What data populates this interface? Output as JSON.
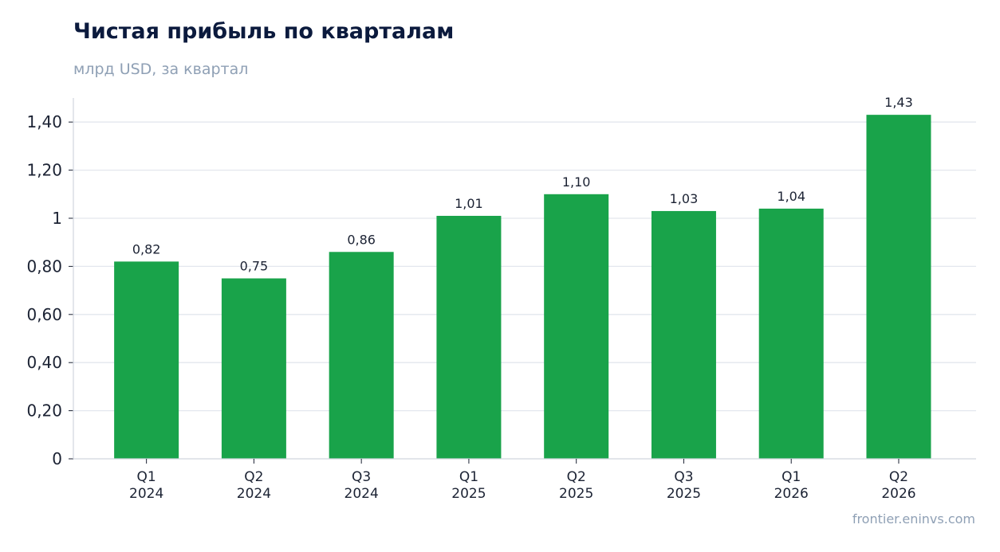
{
  "chart_data": {
    "type": "bar",
    "title": "Чистая прибыль по кварталам",
    "subtitle": "млрд USD, за квартал",
    "categories": [
      [
        "Q1",
        "2024"
      ],
      [
        "Q2",
        "2024"
      ],
      [
        "Q3",
        "2024"
      ],
      [
        "Q1",
        "2025"
      ],
      [
        "Q2",
        "2025"
      ],
      [
        "Q3",
        "2025"
      ],
      [
        "Q1",
        "2026"
      ],
      [
        "Q2",
        "2026"
      ]
    ],
    "values": [
      0.82,
      0.75,
      0.86,
      1.01,
      1.1,
      1.03,
      1.04,
      1.43
    ],
    "data_labels": [
      "0,82",
      "0,75",
      "0,86",
      "1,01",
      "1,10",
      "1,03",
      "1,04",
      "1,43"
    ],
    "yticks": [
      0,
      0.2,
      0.4,
      0.6,
      0.8,
      1,
      1.2,
      1.4
    ],
    "ytick_labels": [
      "0",
      "0,20",
      "0,40",
      "0,60",
      "0,80",
      "1",
      "1,20",
      "1,40"
    ],
    "ylim": [
      0,
      1.5
    ],
    "grid": true,
    "xlabel": "",
    "ylabel": "",
    "bar_color": "#19a34a",
    "grid_color": "#e3e7ee",
    "axis_color": "#d0d5de"
  },
  "source": "frontier.eninvs.com"
}
